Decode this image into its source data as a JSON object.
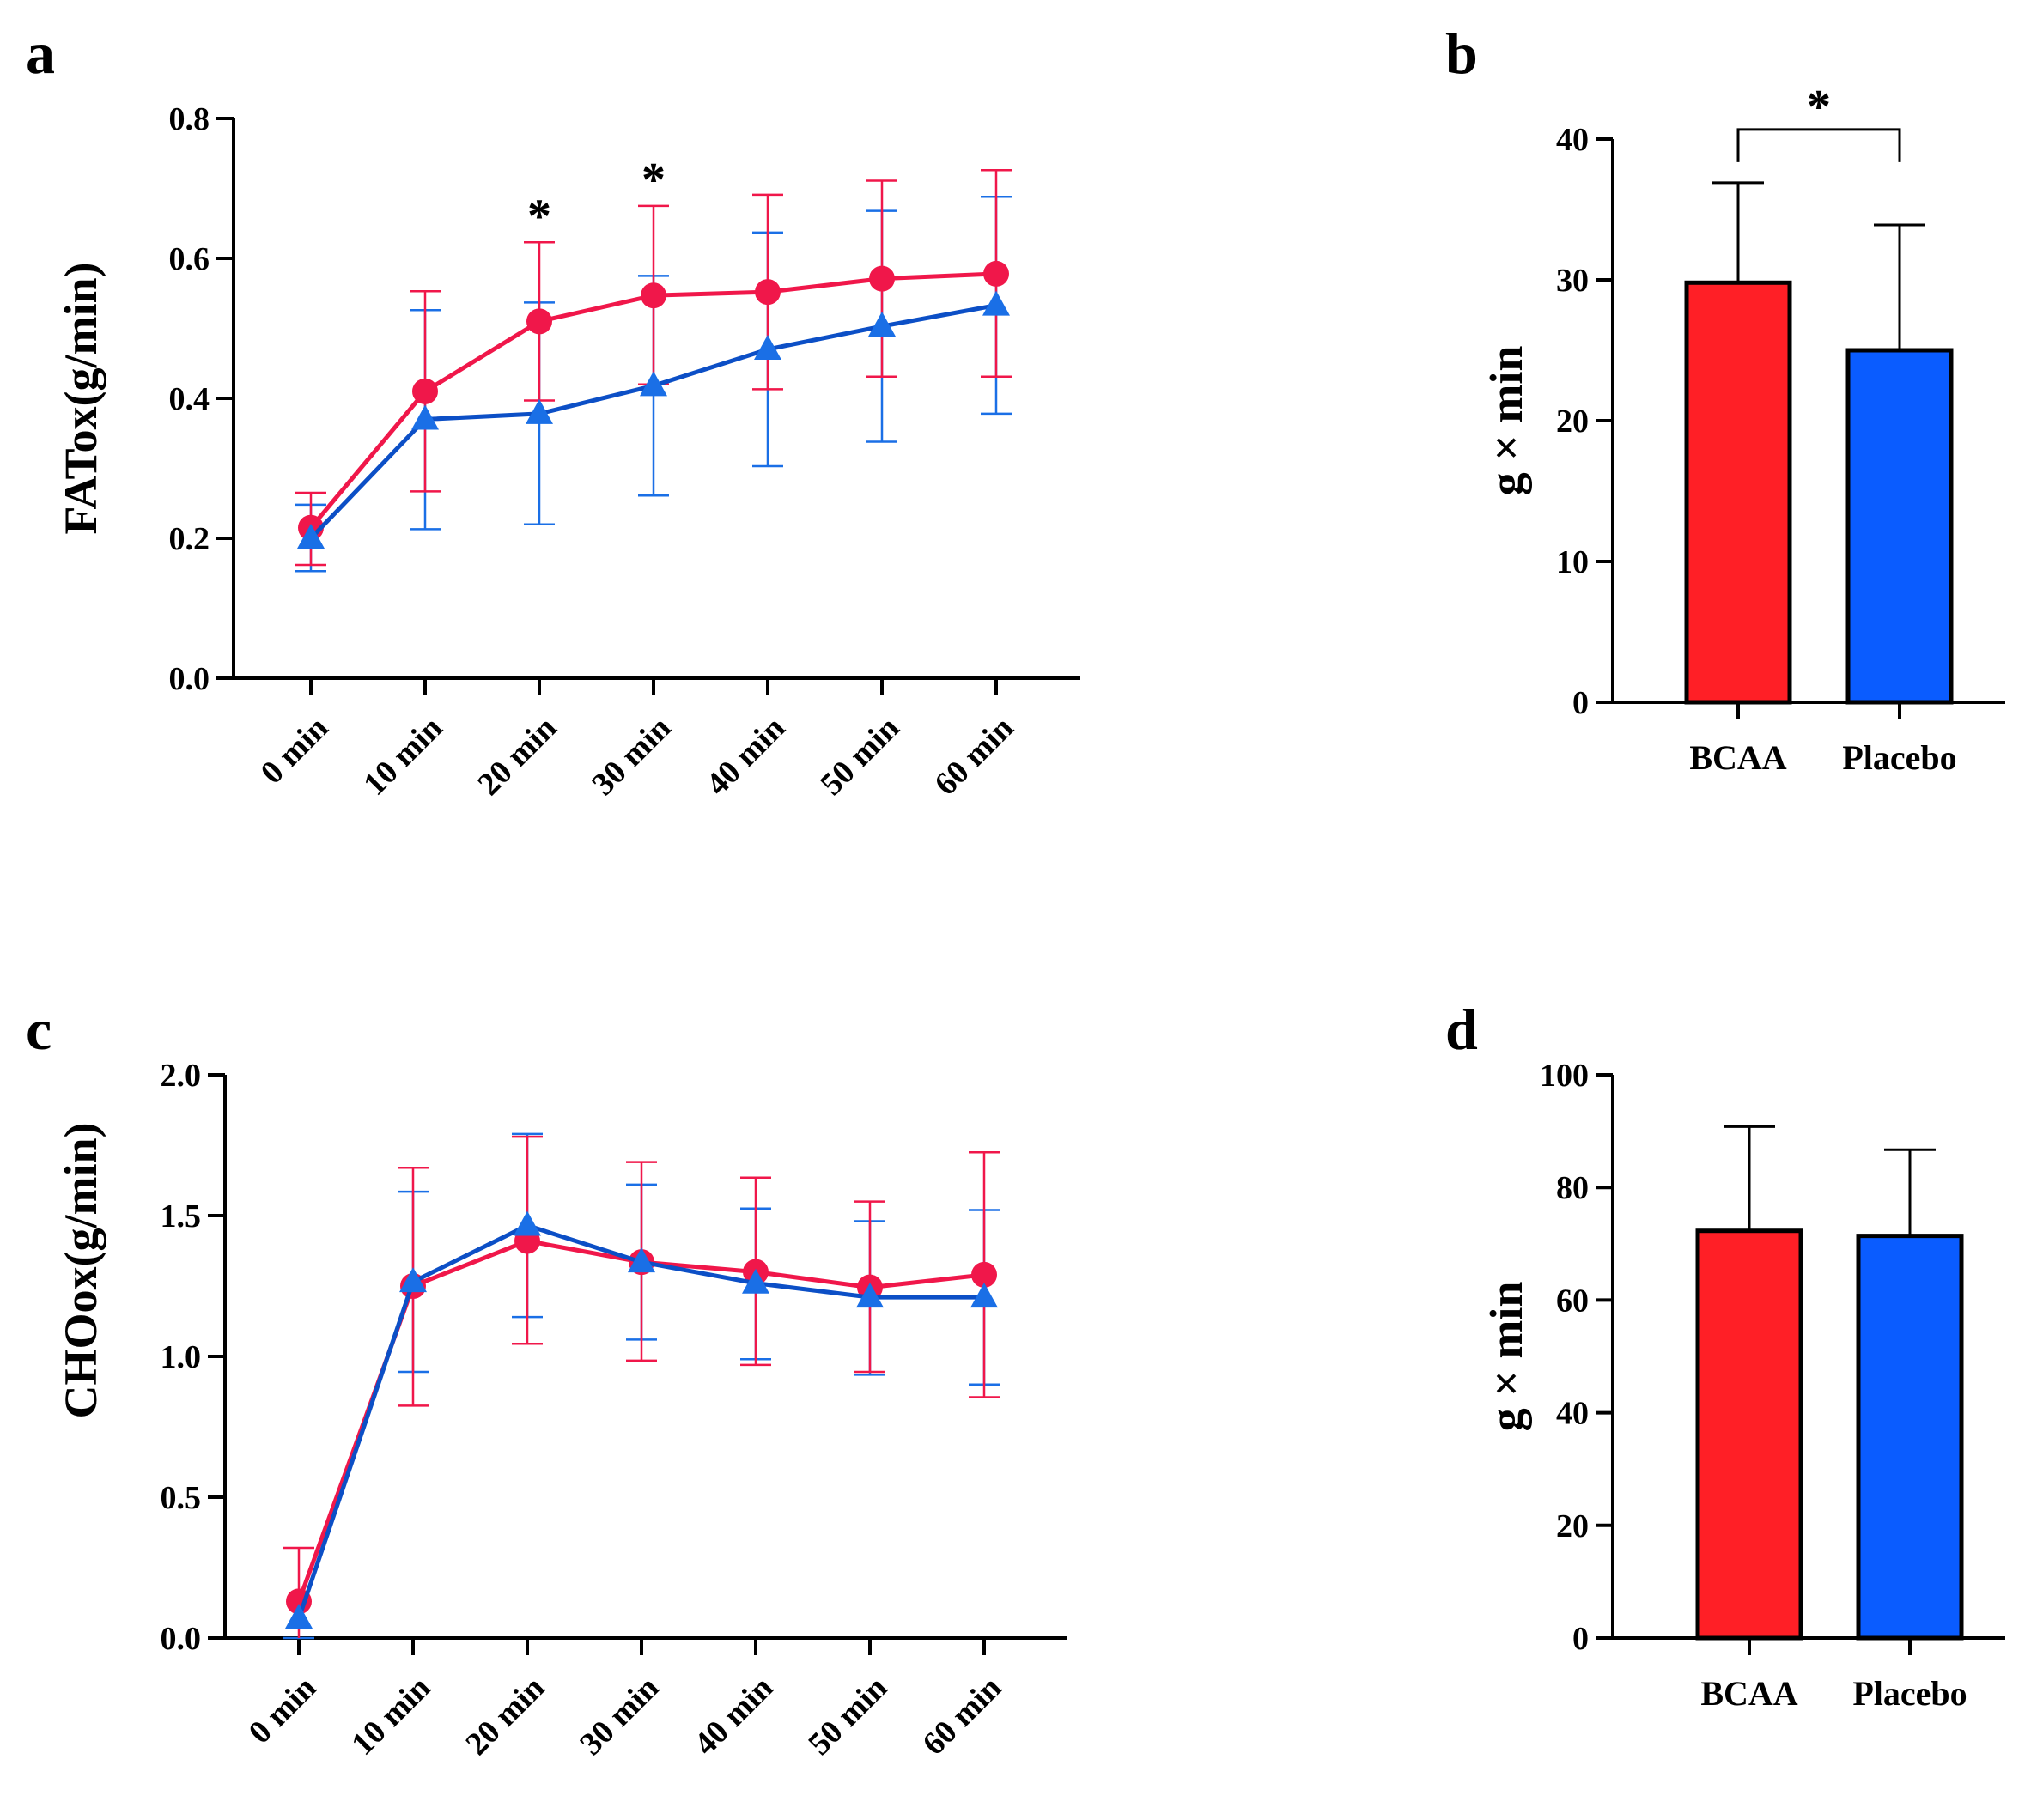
{
  "colors": {
    "bcaa_line": "#f0174a",
    "placebo_line": "#0c4fc6",
    "bcaa_err": "#f0174a",
    "placebo_err": "#1a6fe6",
    "bcaa_bar": "#ff1f26",
    "placebo_bar": "#0a5cff",
    "axis": "#000000"
  },
  "chart_data": [
    {
      "panel": "a",
      "type": "line",
      "ylabel": "FATox(g/min)",
      "ylim": [
        0,
        0.8
      ],
      "yticks": [
        "0.0",
        "0.2",
        "0.4",
        "0.6",
        "0.8"
      ],
      "categories": [
        "0 min",
        "10 min",
        "20 min",
        "30 min",
        "40 min",
        "50 min",
        "60 min"
      ],
      "significance": [
        {
          "category": "20 min",
          "mark": "*"
        },
        {
          "category": "30 min",
          "mark": "*"
        }
      ],
      "series": [
        {
          "name": "BCAA",
          "marker": "circle",
          "values": [
            0.215,
            0.41,
            0.51,
            0.547,
            0.552,
            0.571,
            0.578
          ],
          "err_upper": [
            0.265,
            0.553,
            0.623,
            0.675,
            0.691,
            0.711,
            0.726
          ],
          "err_lower": [
            0.162,
            0.267,
            0.397,
            0.42,
            0.413,
            0.431,
            0.431
          ]
        },
        {
          "name": "Placebo",
          "marker": "triangle",
          "values": [
            0.2,
            0.37,
            0.378,
            0.418,
            0.47,
            0.503,
            0.533
          ],
          "err_upper": [
            0.248,
            0.526,
            0.537,
            0.575,
            0.637,
            0.668,
            0.688
          ],
          "err_lower": [
            0.153,
            0.213,
            0.22,
            0.261,
            0.303,
            0.338,
            0.378
          ]
        }
      ]
    },
    {
      "panel": "b",
      "type": "bar",
      "ylabel": "g × min",
      "ylim": [
        0,
        40
      ],
      "yticks": [
        "0",
        "10",
        "20",
        "30",
        "40"
      ],
      "categories": [
        "BCAA",
        "Placebo"
      ],
      "values": [
        29.8,
        25.0
      ],
      "err_upper": [
        36.9,
        33.9
      ],
      "significance": [
        {
          "between": [
            "BCAA",
            "Placebo"
          ],
          "mark": "*"
        }
      ]
    },
    {
      "panel": "c",
      "type": "line",
      "ylabel": "CHOox(g/min)",
      "ylim": [
        0,
        2.0
      ],
      "yticks": [
        "0.0",
        "0.5",
        "1.0",
        "1.5",
        "2.0"
      ],
      "categories": [
        "0 min",
        "10 min",
        "20 min",
        "30 min",
        "40 min",
        "50 min",
        "60 min"
      ],
      "series": [
        {
          "name": "BCAA",
          "marker": "circle",
          "values": [
            0.13,
            1.25,
            1.41,
            1.335,
            1.3,
            1.245,
            1.29
          ],
          "err_upper": [
            0.32,
            1.67,
            1.78,
            1.69,
            1.635,
            1.55,
            1.725
          ],
          "err_lower": [
            0.0,
            0.825,
            1.045,
            0.985,
            0.97,
            0.945,
            0.855
          ]
        },
        {
          "name": "Placebo",
          "marker": "triangle",
          "values": [
            0.07,
            1.265,
            1.465,
            1.335,
            1.26,
            1.21,
            1.21
          ],
          "err_upper": [
            0.0,
            1.585,
            1.79,
            1.61,
            1.525,
            1.48,
            1.52
          ],
          "err_lower": [
            0.0,
            0.945,
            1.14,
            1.06,
            0.99,
            0.935,
            0.9
          ]
        }
      ]
    },
    {
      "panel": "d",
      "type": "bar",
      "ylabel": "g × min",
      "ylim": [
        0,
        100
      ],
      "yticks": [
        "0",
        "20",
        "40",
        "60",
        "80",
        "100"
      ],
      "categories": [
        "BCAA",
        "Placebo"
      ],
      "values": [
        72.3,
        71.4
      ],
      "err_upper": [
        90.8,
        86.7
      ]
    }
  ]
}
